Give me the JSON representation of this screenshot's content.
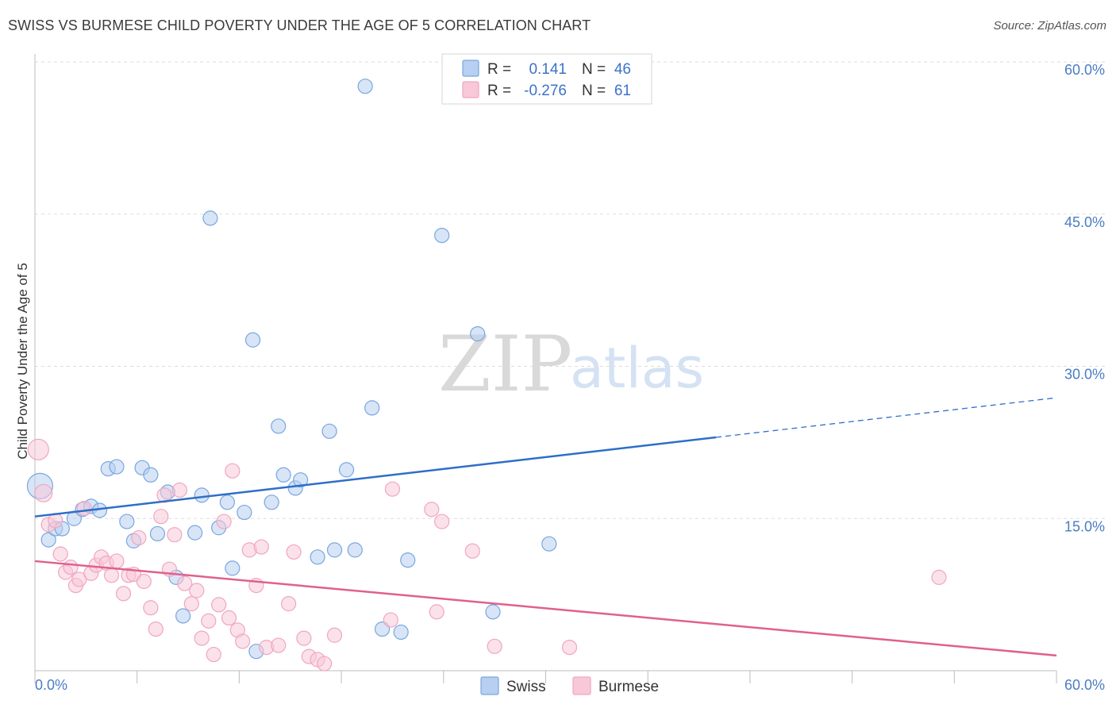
{
  "chart_data": {
    "type": "scatter",
    "title": "SWISS VS BURMESE CHILD POVERTY UNDER THE AGE OF 5 CORRELATION CHART",
    "source": "Source: ZipAtlas.com",
    "ylabel": "Child Poverty Under the Age of 5",
    "xlim": [
      0,
      60
    ],
    "ylim": [
      0,
      60
    ],
    "x_tick_labels": [
      "0.0%",
      "60.0%"
    ],
    "y_ticks": [
      15,
      30,
      45,
      60
    ],
    "y_tick_labels": [
      "15.0%",
      "30.0%",
      "45.0%",
      "60.0%"
    ],
    "watermark": {
      "zip": "ZIP",
      "atlas": "atlas"
    },
    "legend": {
      "r_label": "R =",
      "n_label": "N =",
      "entries": [
        {
          "r": "0.141",
          "n": "46"
        },
        {
          "r": "-0.276",
          "n": "61"
        }
      ]
    },
    "series": [
      {
        "name": "Swiss",
        "color": "#7aa6e0",
        "fill": "#b7cff0",
        "line_color": "#2f6ec8",
        "trend": {
          "x0": 0,
          "y0": 15.2,
          "x1": 40,
          "y1": 23.0,
          "x_dash_end": 60,
          "y_dash_end": 26.9
        },
        "points": [
          [
            0.3,
            18.2,
            16
          ],
          [
            0.8,
            12.9,
            9
          ],
          [
            1.2,
            14.0,
            9
          ],
          [
            1.6,
            14.0,
            9
          ],
          [
            2.3,
            15.0,
            9
          ],
          [
            2.8,
            15.9,
            9
          ],
          [
            3.3,
            16.2,
            9
          ],
          [
            3.8,
            15.8,
            9
          ],
          [
            4.3,
            19.9,
            9
          ],
          [
            4.8,
            20.1,
            9
          ],
          [
            5.4,
            14.7,
            9
          ],
          [
            5.8,
            12.8,
            9
          ],
          [
            6.3,
            20.0,
            9
          ],
          [
            6.8,
            19.3,
            9
          ],
          [
            7.2,
            13.5,
            9
          ],
          [
            7.8,
            17.6,
            9
          ],
          [
            8.3,
            9.2,
            9
          ],
          [
            8.7,
            5.4,
            9
          ],
          [
            9.4,
            13.6,
            9
          ],
          [
            9.8,
            17.3,
            9
          ],
          [
            10.3,
            44.6,
            9
          ],
          [
            10.8,
            14.1,
            9
          ],
          [
            11.3,
            16.6,
            9
          ],
          [
            11.6,
            10.1,
            9
          ],
          [
            12.3,
            15.6,
            9
          ],
          [
            12.8,
            32.6,
            9
          ],
          [
            13.0,
            1.9,
            9
          ],
          [
            13.9,
            16.6,
            9
          ],
          [
            14.3,
            24.1,
            9
          ],
          [
            14.6,
            19.3,
            9
          ],
          [
            15.3,
            18.0,
            9
          ],
          [
            15.6,
            18.8,
            9
          ],
          [
            16.6,
            11.2,
            9
          ],
          [
            17.3,
            23.6,
            9
          ],
          [
            17.6,
            11.9,
            9
          ],
          [
            18.3,
            19.8,
            9
          ],
          [
            18.8,
            11.9,
            9
          ],
          [
            19.4,
            57.6,
            9
          ],
          [
            19.8,
            25.9,
            9
          ],
          [
            20.4,
            4.1,
            9
          ],
          [
            21.5,
            3.8,
            9
          ],
          [
            21.9,
            10.9,
            9
          ],
          [
            23.9,
            42.9,
            9
          ],
          [
            26.0,
            33.2,
            9
          ],
          [
            26.9,
            5.8,
            9
          ],
          [
            30.2,
            12.5,
            9
          ]
        ]
      },
      {
        "name": "Burmese",
        "color": "#f0a6bf",
        "fill": "#f8c8d8",
        "line_color": "#e0608f",
        "trend": {
          "x0": 0,
          "y0": 10.8,
          "x1": 60,
          "y1": 1.5
        },
        "points": [
          [
            0.2,
            21.8,
            13
          ],
          [
            0.5,
            17.5,
            11
          ],
          [
            0.8,
            14.4,
            9
          ],
          [
            1.2,
            14.8,
            9
          ],
          [
            1.5,
            11.5,
            9
          ],
          [
            1.8,
            9.7,
            9
          ],
          [
            2.1,
            10.2,
            9
          ],
          [
            2.4,
            8.4,
            9
          ],
          [
            2.6,
            9.0,
            9
          ],
          [
            2.9,
            16.0,
            9
          ],
          [
            3.3,
            9.6,
            9
          ],
          [
            3.6,
            10.4,
            9
          ],
          [
            3.9,
            11.2,
            9
          ],
          [
            4.2,
            10.6,
            9
          ],
          [
            4.5,
            9.4,
            9
          ],
          [
            4.8,
            10.8,
            9
          ],
          [
            5.2,
            7.6,
            9
          ],
          [
            5.5,
            9.4,
            9
          ],
          [
            5.8,
            9.5,
            9
          ],
          [
            6.1,
            13.1,
            9
          ],
          [
            6.4,
            8.8,
            9
          ],
          [
            6.8,
            6.2,
            9
          ],
          [
            7.1,
            4.1,
            9
          ],
          [
            7.4,
            15.2,
            9
          ],
          [
            7.6,
            17.3,
            9
          ],
          [
            7.9,
            10.0,
            9
          ],
          [
            8.2,
            13.4,
            9
          ],
          [
            8.5,
            17.8,
            9
          ],
          [
            8.8,
            8.6,
            9
          ],
          [
            9.2,
            6.6,
            9
          ],
          [
            9.5,
            7.9,
            9
          ],
          [
            9.8,
            3.2,
            9
          ],
          [
            10.2,
            4.9,
            9
          ],
          [
            10.5,
            1.6,
            9
          ],
          [
            10.8,
            6.5,
            9
          ],
          [
            11.1,
            14.7,
            9
          ],
          [
            11.4,
            5.2,
            9
          ],
          [
            11.6,
            19.7,
            9
          ],
          [
            11.9,
            4.0,
            9
          ],
          [
            12.2,
            2.9,
            9
          ],
          [
            12.6,
            11.9,
            9
          ],
          [
            13.0,
            8.4,
            9
          ],
          [
            13.3,
            12.2,
            9
          ],
          [
            13.6,
            2.3,
            9
          ],
          [
            14.3,
            2.5,
            9
          ],
          [
            14.9,
            6.6,
            9
          ],
          [
            15.2,
            11.7,
            9
          ],
          [
            15.8,
            3.2,
            9
          ],
          [
            16.1,
            1.4,
            9
          ],
          [
            16.6,
            1.1,
            9
          ],
          [
            17.0,
            0.7,
            9
          ],
          [
            17.6,
            3.5,
            9
          ],
          [
            20.9,
            5.0,
            9
          ],
          [
            21.0,
            17.9,
            9
          ],
          [
            23.3,
            15.9,
            9
          ],
          [
            23.6,
            5.8,
            9
          ],
          [
            23.9,
            14.7,
            9
          ],
          [
            25.7,
            11.8,
            9
          ],
          [
            27.0,
            2.4,
            9
          ],
          [
            31.4,
            2.3,
            9
          ],
          [
            53.1,
            9.2,
            9
          ]
        ]
      }
    ]
  }
}
